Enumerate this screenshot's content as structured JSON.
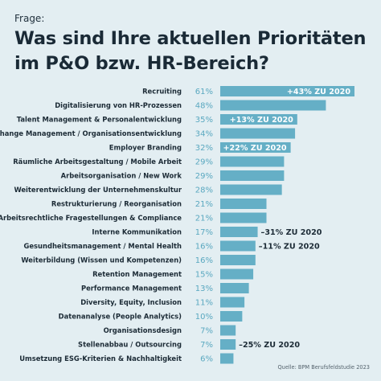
{
  "header": {
    "eyebrow": "Frage:",
    "title_line1": "Was sind Ihre aktuellen Prioritäten",
    "title_line2": "im P&O bzw. HR-Bereich?"
  },
  "source": "Quelle: BPM Berufsfeldstudie 2023",
  "colors": {
    "bar": "#65afc6",
    "percent_text": "#5aa8c0",
    "background": "#e3eef2",
    "text": "#1c2b36"
  },
  "chart_data": {
    "type": "bar",
    "orientation": "horizontal",
    "unit": "%",
    "title": "Was sind Ihre aktuellen Prioritäten im P&O bzw. HR-Bereich?",
    "xlim": [
      0,
      61
    ],
    "grid": false,
    "categories": [
      "Recruiting",
      "Digitalisierung von HR-Prozessen",
      "Talent Management & Personalentwicklung",
      "Change Management / Organisationsentwicklung",
      "Employer Branding",
      "Räumliche Arbeitsgestaltung / Mobile Arbeit",
      "Arbeitsorganisation / New Work",
      "Weiterentwicklung der Unternehmenskultur",
      "Restrukturierung / Reorganisation",
      "Arbeitsrechtliche Fragestellungen & Compliance",
      "Interne Kommunikation",
      "Gesundheitsmanagement / Mental Health",
      "Weiterbildung (Wissen und Kompetenzen)",
      "Retention Management",
      "Performance Management",
      "Diversity, Equity, Inclusion",
      "Datenanalyse (People Analytics)",
      "Organisationsdesign",
      "Stellenabbau / Outsourcing",
      "Umsetzung ESG-Kriterien & Nachhaltigkeit"
    ],
    "values": [
      61,
      48,
      35,
      34,
      32,
      29,
      29,
      28,
      21,
      21,
      17,
      16,
      16,
      15,
      13,
      11,
      10,
      7,
      7,
      6
    ],
    "value_labels": [
      "61%",
      "48%",
      "35%",
      "34%",
      "32%",
      "29%",
      "29%",
      "28%",
      "21%",
      "21%",
      "17%",
      "16%",
      "16%",
      "15%",
      "13%",
      "11%",
      "10%",
      "7%",
      "7%",
      "6%"
    ],
    "annotations": [
      {
        "category_index": 0,
        "text": "+43% ZU 2020",
        "placement": "inside"
      },
      {
        "category_index": 2,
        "text": "+13% ZU 2020",
        "placement": "inside"
      },
      {
        "category_index": 4,
        "text": "+22% ZU 2020",
        "placement": "inside"
      },
      {
        "category_index": 10,
        "text": "–31% ZU 2020",
        "placement": "outside"
      },
      {
        "category_index": 11,
        "text": "–11% ZU 2020",
        "placement": "outside"
      },
      {
        "category_index": 18,
        "text": "–25% ZU 2020",
        "placement": "outside"
      }
    ]
  }
}
